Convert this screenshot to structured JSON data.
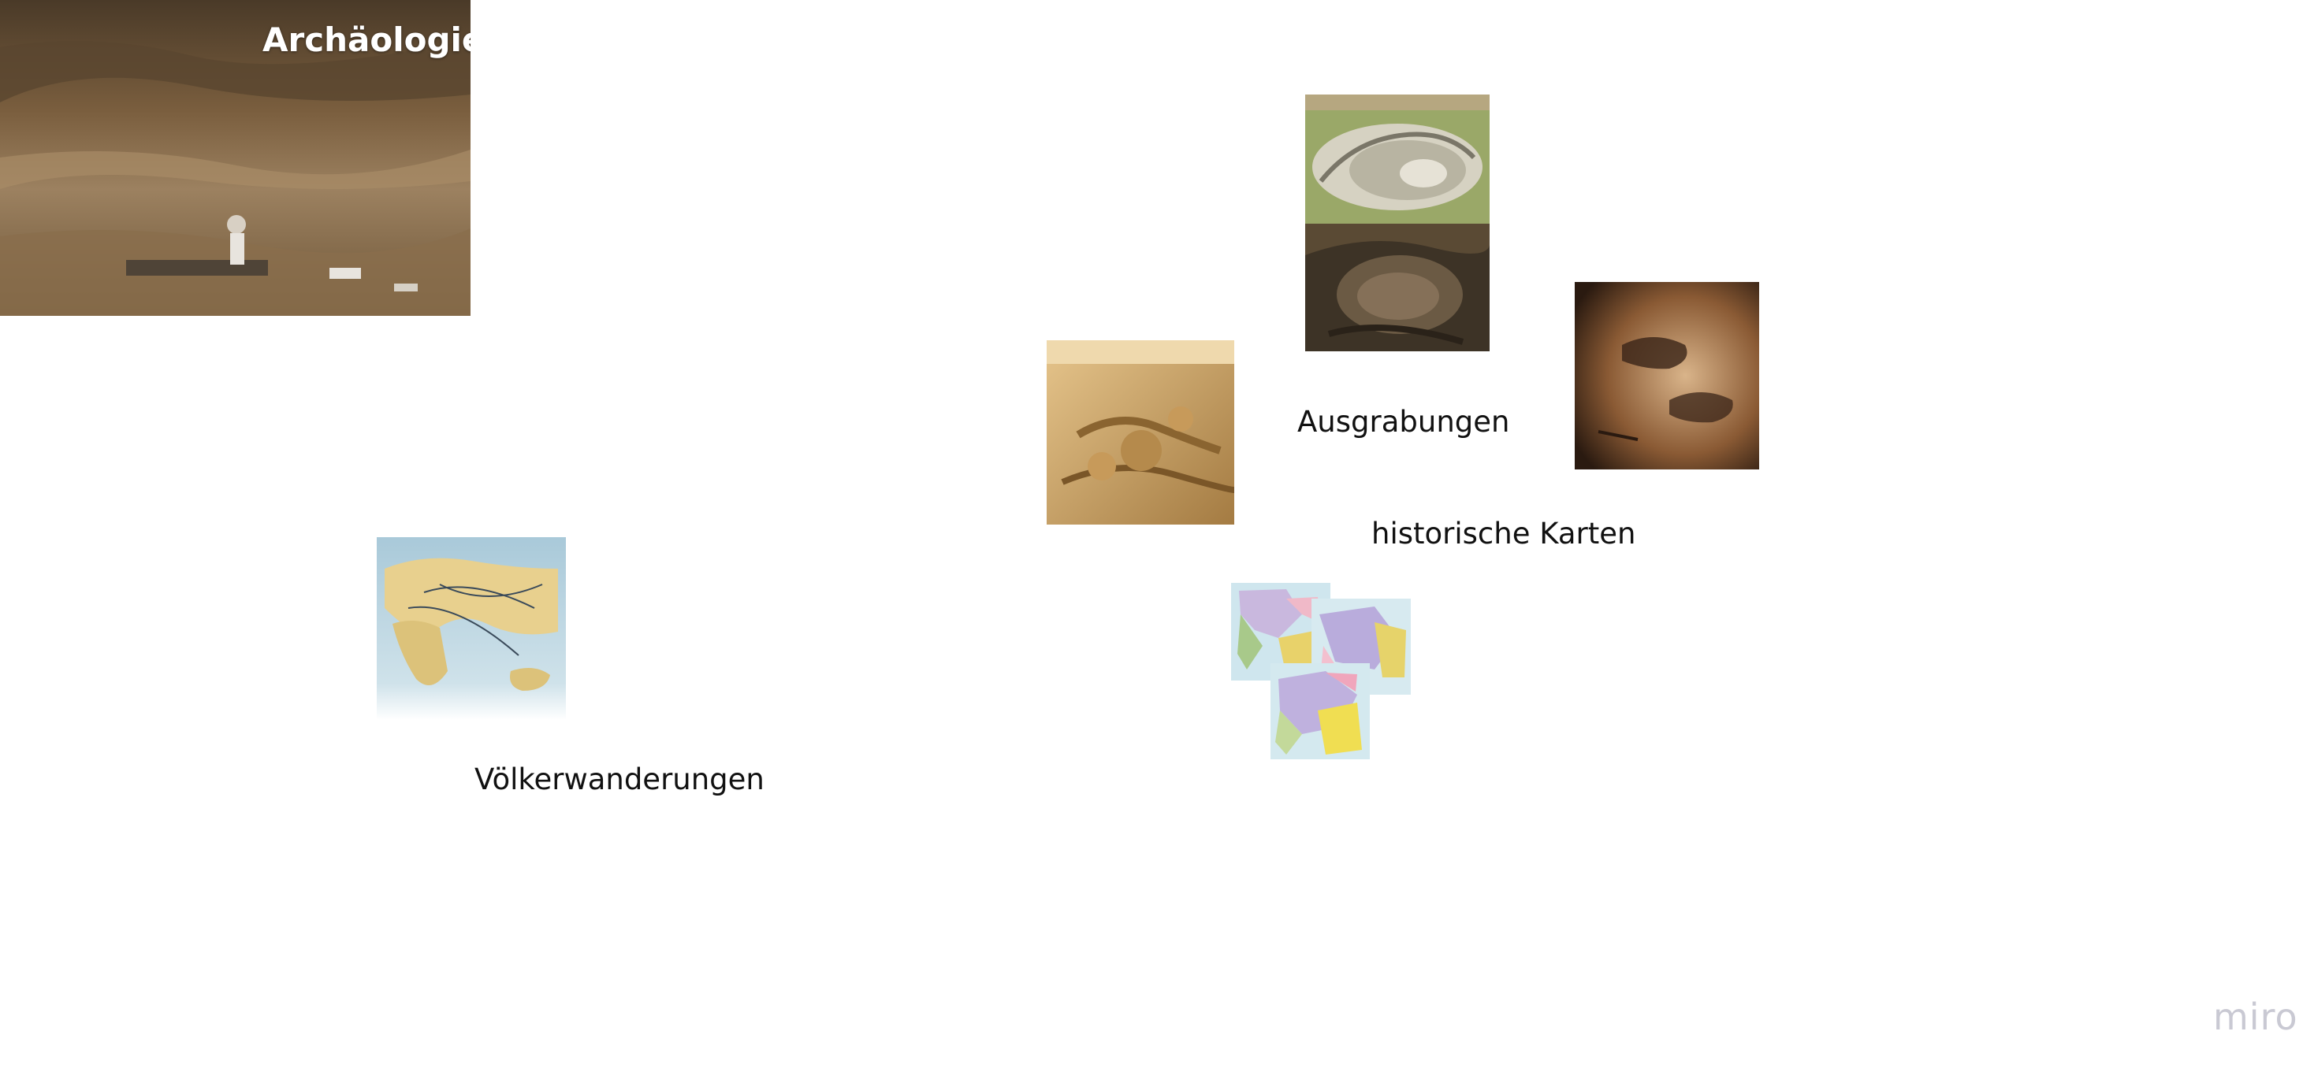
{
  "board": {
    "title": "Archäologie",
    "labels": {
      "excavations": "Ausgrabungen",
      "historic_maps": "historische Karten",
      "migrations": "Völkerwanderungen"
    },
    "watermark": "miro"
  },
  "colors": {
    "background": "#ffffff",
    "title_text": "#ffffff",
    "label_text": "#111111",
    "watermark": "#c9c9d3"
  },
  "images": [
    {
      "name": "excavation-site-photo"
    },
    {
      "name": "fortress-aerial-photo"
    },
    {
      "name": "ruins-aerial-photo"
    },
    {
      "name": "desert-ruins-photo"
    },
    {
      "name": "cave-painting-photo"
    },
    {
      "name": "migration-map"
    },
    {
      "name": "europe-historic-map-1"
    },
    {
      "name": "europe-historic-map-2"
    },
    {
      "name": "europe-historic-map-3"
    }
  ]
}
